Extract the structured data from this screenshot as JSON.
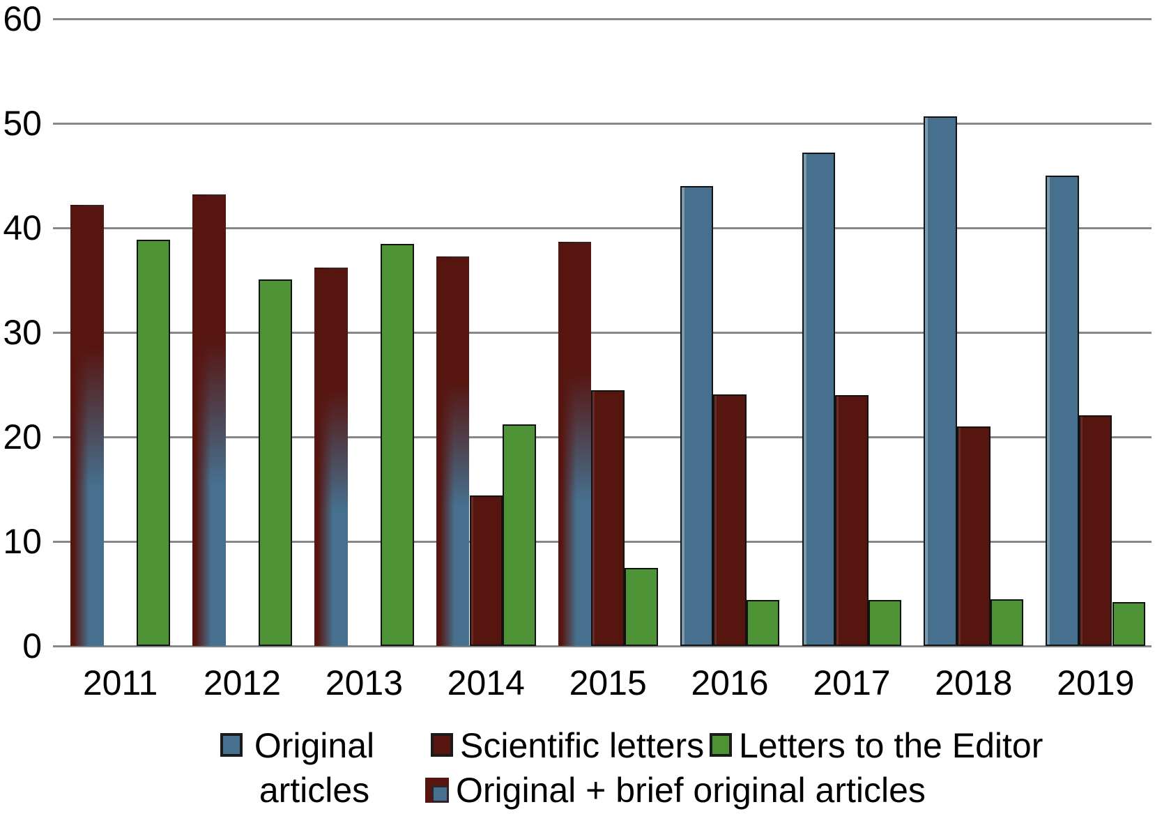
{
  "figure": {
    "background_color": "#ffffff",
    "gridline_color": "#878787",
    "text_color": "#000000"
  },
  "legend": {
    "items": [
      {
        "label": "Original articles",
        "swatch": "blue-square-icon",
        "color": "#46708e"
      },
      {
        "label": "Scientific letters",
        "swatch": "darkred-square-icon",
        "color": "#571510"
      },
      {
        "label": "Letters to the Editor",
        "swatch": "green-square-icon",
        "color": "#4e9336"
      },
      {
        "label": "Original + brief original articles",
        "swatch": "darkred-blue-combined-square-icon",
        "color": "#571510",
        "color2": "#46708e"
      }
    ]
  },
  "chart_data": {
    "type": "bar",
    "categories": [
      "2011",
      "2012",
      "2013",
      "2014",
      "2015",
      "2016",
      "2017",
      "2018",
      "2019"
    ],
    "series": [
      {
        "name": "Original articles",
        "color": "#46708e",
        "values": [
          null,
          null,
          null,
          null,
          null,
          44.0,
          47.2,
          50.7,
          45.0
        ]
      },
      {
        "name": "Scientific letters",
        "color": "#571510",
        "values": [
          null,
          null,
          null,
          14.4,
          24.5,
          24.1,
          24.0,
          21.0,
          22.1
        ]
      },
      {
        "name": "Letters to the Editor",
        "color": "#4e9336",
        "values": [
          38.9,
          35.1,
          38.5,
          21.2,
          7.5,
          4.4,
          4.4,
          4.5,
          4.2
        ]
      },
      {
        "name": "Original + brief original articles",
        "color": "#571510",
        "color2": "#46708e",
        "style": "vertical-gradient",
        "values": [
          42.2,
          43.2,
          36.2,
          37.3,
          38.7,
          null,
          null,
          null,
          null
        ]
      }
    ],
    "title": "",
    "xlabel": "",
    "ylabel": "",
    "ylim": [
      0,
      60
    ],
    "yticks": [
      0,
      10,
      20,
      30,
      40,
      50,
      60
    ],
    "grid": "horizontal",
    "legend_position": "bottom"
  }
}
